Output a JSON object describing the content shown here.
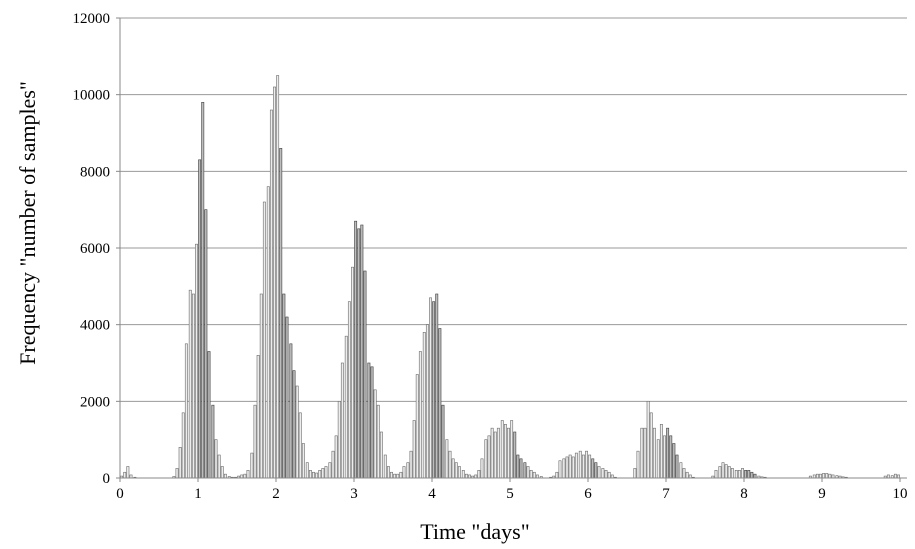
{
  "chart_data": {
    "type": "bar",
    "xlabel": "Time \"days\"",
    "ylabel": "Frequency \"number of samples\"",
    "xlim": [
      0,
      10
    ],
    "ylim": [
      0,
      12000
    ],
    "xticks": [
      0,
      1,
      2,
      3,
      4,
      5,
      6,
      7,
      8,
      9,
      10
    ],
    "yticks": [
      0,
      2000,
      4000,
      6000,
      8000,
      10000,
      12000
    ],
    "grid": "horizontal",
    "bar_width_days": 0.0417,
    "colors": {
      "bar_fill": "#ededed",
      "bar_stroke": "#6a6a6a",
      "grid": "#9a9a9a",
      "axis": "#888888"
    },
    "x": [
      0.0,
      0.04,
      0.08,
      0.12,
      0.17,
      0.21,
      0.25,
      0.29,
      0.33,
      0.38,
      0.42,
      0.46,
      0.5,
      0.54,
      0.58,
      0.62,
      0.67,
      0.71,
      0.75,
      0.79,
      0.83,
      0.88,
      0.92,
      0.96,
      1.0,
      1.04,
      1.08,
      1.12,
      1.17,
      1.21,
      1.25,
      1.29,
      1.33,
      1.38,
      1.42,
      1.46,
      1.5,
      1.54,
      1.58,
      1.62,
      1.67,
      1.71,
      1.75,
      1.79,
      1.83,
      1.88,
      1.92,
      1.96,
      2.0,
      2.04,
      2.08,
      2.12,
      2.17,
      2.21,
      2.25,
      2.29,
      2.33,
      2.38,
      2.42,
      2.46,
      2.5,
      2.54,
      2.58,
      2.62,
      2.67,
      2.71,
      2.75,
      2.79,
      2.83,
      2.88,
      2.92,
      2.96,
      3.0,
      3.04,
      3.08,
      3.12,
      3.17,
      3.21,
      3.25,
      3.29,
      3.33,
      3.38,
      3.42,
      3.46,
      3.5,
      3.54,
      3.58,
      3.62,
      3.67,
      3.71,
      3.75,
      3.79,
      3.83,
      3.88,
      3.92,
      3.96,
      4.0,
      4.04,
      4.08,
      4.12,
      4.17,
      4.21,
      4.25,
      4.29,
      4.33,
      4.38,
      4.42,
      4.46,
      4.5,
      4.54,
      4.58,
      4.62,
      4.67,
      4.71,
      4.75,
      4.79,
      4.83,
      4.88,
      4.92,
      4.96,
      5.0,
      5.04,
      5.08,
      5.12,
      5.17,
      5.21,
      5.25,
      5.29,
      5.33,
      5.38,
      5.42,
      5.46,
      5.5,
      5.54,
      5.58,
      5.62,
      5.67,
      5.71,
      5.75,
      5.79,
      5.83,
      5.88,
      5.92,
      5.96,
      6.0,
      6.04,
      6.08,
      6.12,
      6.17,
      6.21,
      6.25,
      6.29,
      6.33,
      6.38,
      6.42,
      6.46,
      6.5,
      6.54,
      6.58,
      6.62,
      6.67,
      6.71,
      6.75,
      6.79,
      6.83,
      6.88,
      6.92,
      6.96,
      7.0,
      7.04,
      7.08,
      7.12,
      7.17,
      7.21,
      7.25,
      7.29,
      7.33,
      7.38,
      7.42,
      7.46,
      7.5,
      7.54,
      7.58,
      7.62,
      7.67,
      7.71,
      7.75,
      7.79,
      7.83,
      7.88,
      7.92,
      7.96,
      8.0,
      8.04,
      8.08,
      8.12,
      8.17,
      8.21,
      8.25,
      8.29,
      8.33,
      8.38,
      8.42,
      8.46,
      8.5,
      8.54,
      8.58,
      8.62,
      8.67,
      8.71,
      8.75,
      8.79,
      8.83,
      8.88,
      8.92,
      8.96,
      9.0,
      9.04,
      9.08,
      9.12,
      9.17,
      9.21,
      9.25,
      9.29,
      9.33,
      9.38,
      9.42,
      9.46,
      9.5,
      9.54,
      9.58,
      9.62,
      9.67,
      9.71,
      9.75,
      9.79,
      9.83,
      9.88,
      9.92,
      9.96
    ],
    "values": [
      50,
      150,
      300,
      80,
      20,
      0,
      0,
      0,
      0,
      0,
      0,
      0,
      0,
      0,
      0,
      0,
      40,
      250,
      800,
      1700,
      3500,
      4900,
      4800,
      6100,
      8300,
      9800,
      7000,
      3300,
      1900,
      1000,
      600,
      300,
      100,
      40,
      20,
      20,
      50,
      80,
      100,
      200,
      650,
      1900,
      3200,
      4800,
      7200,
      7600,
      9600,
      10200,
      10500,
      8600,
      4800,
      4200,
      3500,
      2800,
      2400,
      1700,
      900,
      400,
      200,
      150,
      130,
      200,
      250,
      300,
      400,
      700,
      1100,
      2000,
      3000,
      3700,
      4600,
      5500,
      6700,
      6500,
      6600,
      5400,
      3000,
      2900,
      2300,
      1900,
      1200,
      600,
      300,
      150,
      100,
      100,
      150,
      300,
      400,
      700,
      1500,
      2700,
      3300,
      3800,
      4000,
      4700,
      4600,
      4800,
      3900,
      1900,
      1000,
      700,
      500,
      400,
      300,
      200,
      100,
      80,
      50,
      80,
      200,
      500,
      1000,
      1100,
      1300,
      1200,
      1300,
      1500,
      1400,
      1300,
      1500,
      1200,
      600,
      500,
      400,
      300,
      200,
      150,
      80,
      40,
      0,
      0,
      20,
      50,
      150,
      450,
      500,
      550,
      600,
      550,
      650,
      700,
      600,
      700,
      600,
      500,
      400,
      300,
      250,
      200,
      150,
      80,
      20,
      0,
      0,
      0,
      0,
      0,
      250,
      700,
      1300,
      1300,
      2000,
      1700,
      1300,
      1000,
      1400,
      1100,
      1300,
      1100,
      900,
      600,
      400,
      250,
      150,
      80,
      20,
      0,
      0,
      0,
      0,
      0,
      50,
      200,
      300,
      400,
      350,
      300,
      250,
      200,
      200,
      250,
      200,
      200,
      150,
      100,
      50,
      30,
      20,
      0,
      0,
      0,
      0,
      0,
      0,
      0,
      0,
      0,
      0,
      0,
      0,
      0,
      50,
      80,
      100,
      100,
      120,
      120,
      100,
      80,
      60,
      50,
      30,
      20,
      0,
      0,
      0,
      0,
      0,
      0,
      0,
      0,
      0,
      0,
      0,
      50,
      80,
      60,
      100,
      80
    ],
    "dark_bars": [
      24,
      25,
      26,
      27,
      28,
      49,
      50,
      51,
      52,
      53,
      72,
      73,
      74,
      75,
      76,
      77,
      96,
      97,
      98,
      99,
      121,
      122,
      123,
      124,
      145,
      146,
      168,
      169,
      170,
      171,
      192,
      193,
      194,
      195
    ]
  }
}
